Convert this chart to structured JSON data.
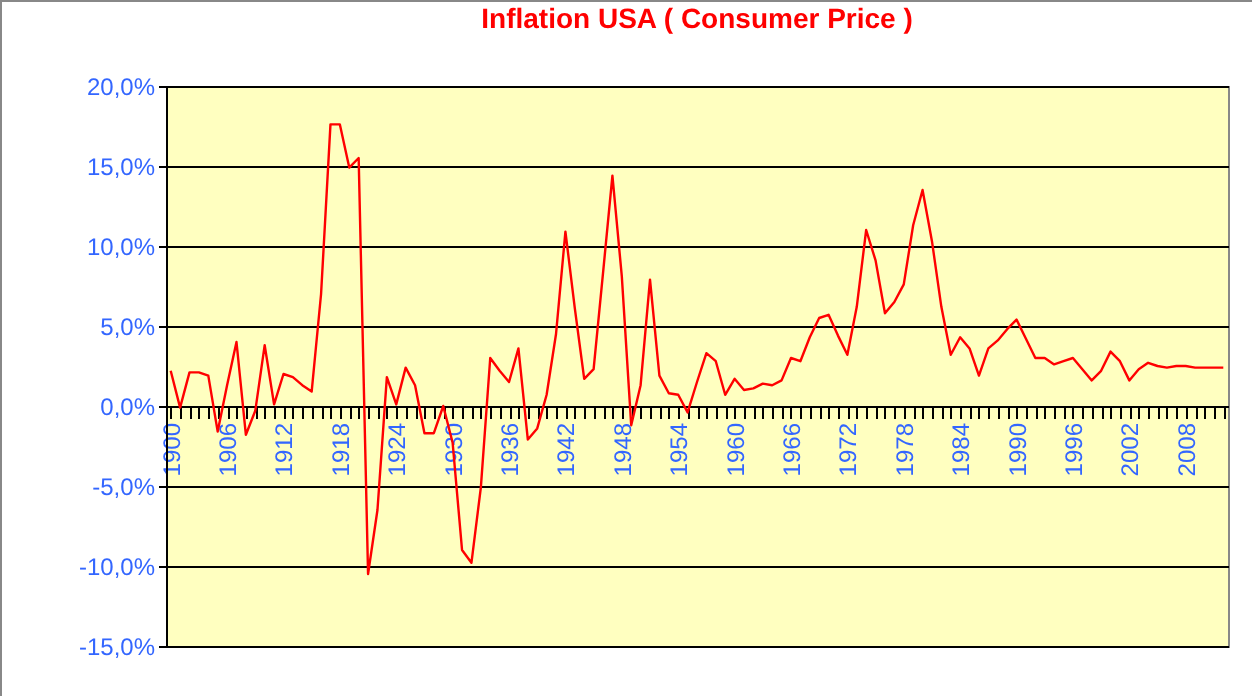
{
  "chart_data": {
    "type": "line",
    "title": "Inflation USA   ( Consumer Price  )",
    "categories": [
      "1900",
      null,
      null,
      null,
      null,
      null,
      "1906",
      null,
      null,
      null,
      null,
      null,
      "1912",
      null,
      null,
      null,
      null,
      null,
      "1918",
      null,
      null,
      null,
      null,
      null,
      "1924",
      null,
      null,
      null,
      null,
      null,
      "1930",
      null,
      null,
      null,
      null,
      null,
      "1936",
      null,
      null,
      null,
      null,
      null,
      "1942",
      null,
      null,
      null,
      null,
      null,
      "1948",
      null,
      null,
      null,
      null,
      null,
      "1954",
      null,
      null,
      null,
      null,
      null,
      "1960",
      null,
      null,
      null,
      null,
      null,
      "1966",
      null,
      null,
      null,
      null,
      null,
      "1972",
      null,
      null,
      null,
      null,
      null,
      "1978",
      null,
      null,
      null,
      null,
      null,
      "1984",
      null,
      null,
      null,
      null,
      null,
      "1990",
      null,
      null,
      null,
      null,
      null,
      "1996",
      null,
      null,
      null,
      null,
      null,
      "2002",
      null,
      null,
      null,
      null,
      null,
      "2008",
      null,
      null,
      null,
      null
    ],
    "series": [
      {
        "color": "#ff0000",
        "values": [
          2.2,
          -0.1,
          2.1,
          2.1,
          1.9,
          -1.6,
          1.3,
          4.0,
          -1.8,
          -0.3,
          3.8,
          0.1,
          2.0,
          1.8,
          1.3,
          0.9,
          7.0,
          17.6,
          17.6,
          14.9,
          15.5,
          -10.5,
          -6.5,
          1.8,
          0.1,
          2.4,
          1.3,
          -1.7,
          -1.7,
          0.0,
          -2.3,
          -9.0,
          -9.8,
          -5.1,
          3.0,
          2.2,
          1.5,
          3.6,
          -2.1,
          -1.4,
          0.7,
          4.5,
          10.9,
          6.1,
          1.7,
          2.3,
          8.3,
          14.4,
          8.1,
          -1.2,
          1.3,
          7.9,
          1.9,
          0.8,
          0.7,
          -0.4,
          1.5,
          3.3,
          2.8,
          0.7,
          1.7,
          1.0,
          1.1,
          1.4,
          1.3,
          1.6,
          3.0,
          2.8,
          4.3,
          5.5,
          5.7,
          4.4,
          3.2,
          6.2,
          11.0,
          9.1,
          5.8,
          6.5,
          7.6,
          11.3,
          13.5,
          10.3,
          6.2,
          3.2,
          4.3,
          3.6,
          1.9,
          3.6,
          4.1,
          4.8,
          5.4,
          4.2,
          3.0,
          3.0,
          2.6,
          2.8,
          3.0,
          2.3,
          1.6,
          2.2,
          3.4,
          2.8,
          1.6,
          2.3,
          2.7,
          2.5,
          2.4,
          2.5,
          2.5,
          2.4,
          2.4,
          2.4,
          2.4
        ]
      }
    ],
    "ylim": [
      -15,
      20
    ],
    "yticks": [
      {
        "value": -15,
        "label": "-15,0%"
      },
      {
        "value": -10,
        "label": "-10,0%"
      },
      {
        "value": -5,
        "label": "-5,0%"
      },
      {
        "value": 0,
        "label": "0,0%"
      },
      {
        "value": 5,
        "label": "5,0%"
      },
      {
        "value": 10,
        "label": "10,0%"
      },
      {
        "value": 15,
        "label": "15,0%"
      },
      {
        "value": 20,
        "label": "20,0%"
      }
    ],
    "grid": "y",
    "marker": "none",
    "line_style": "solid"
  }
}
